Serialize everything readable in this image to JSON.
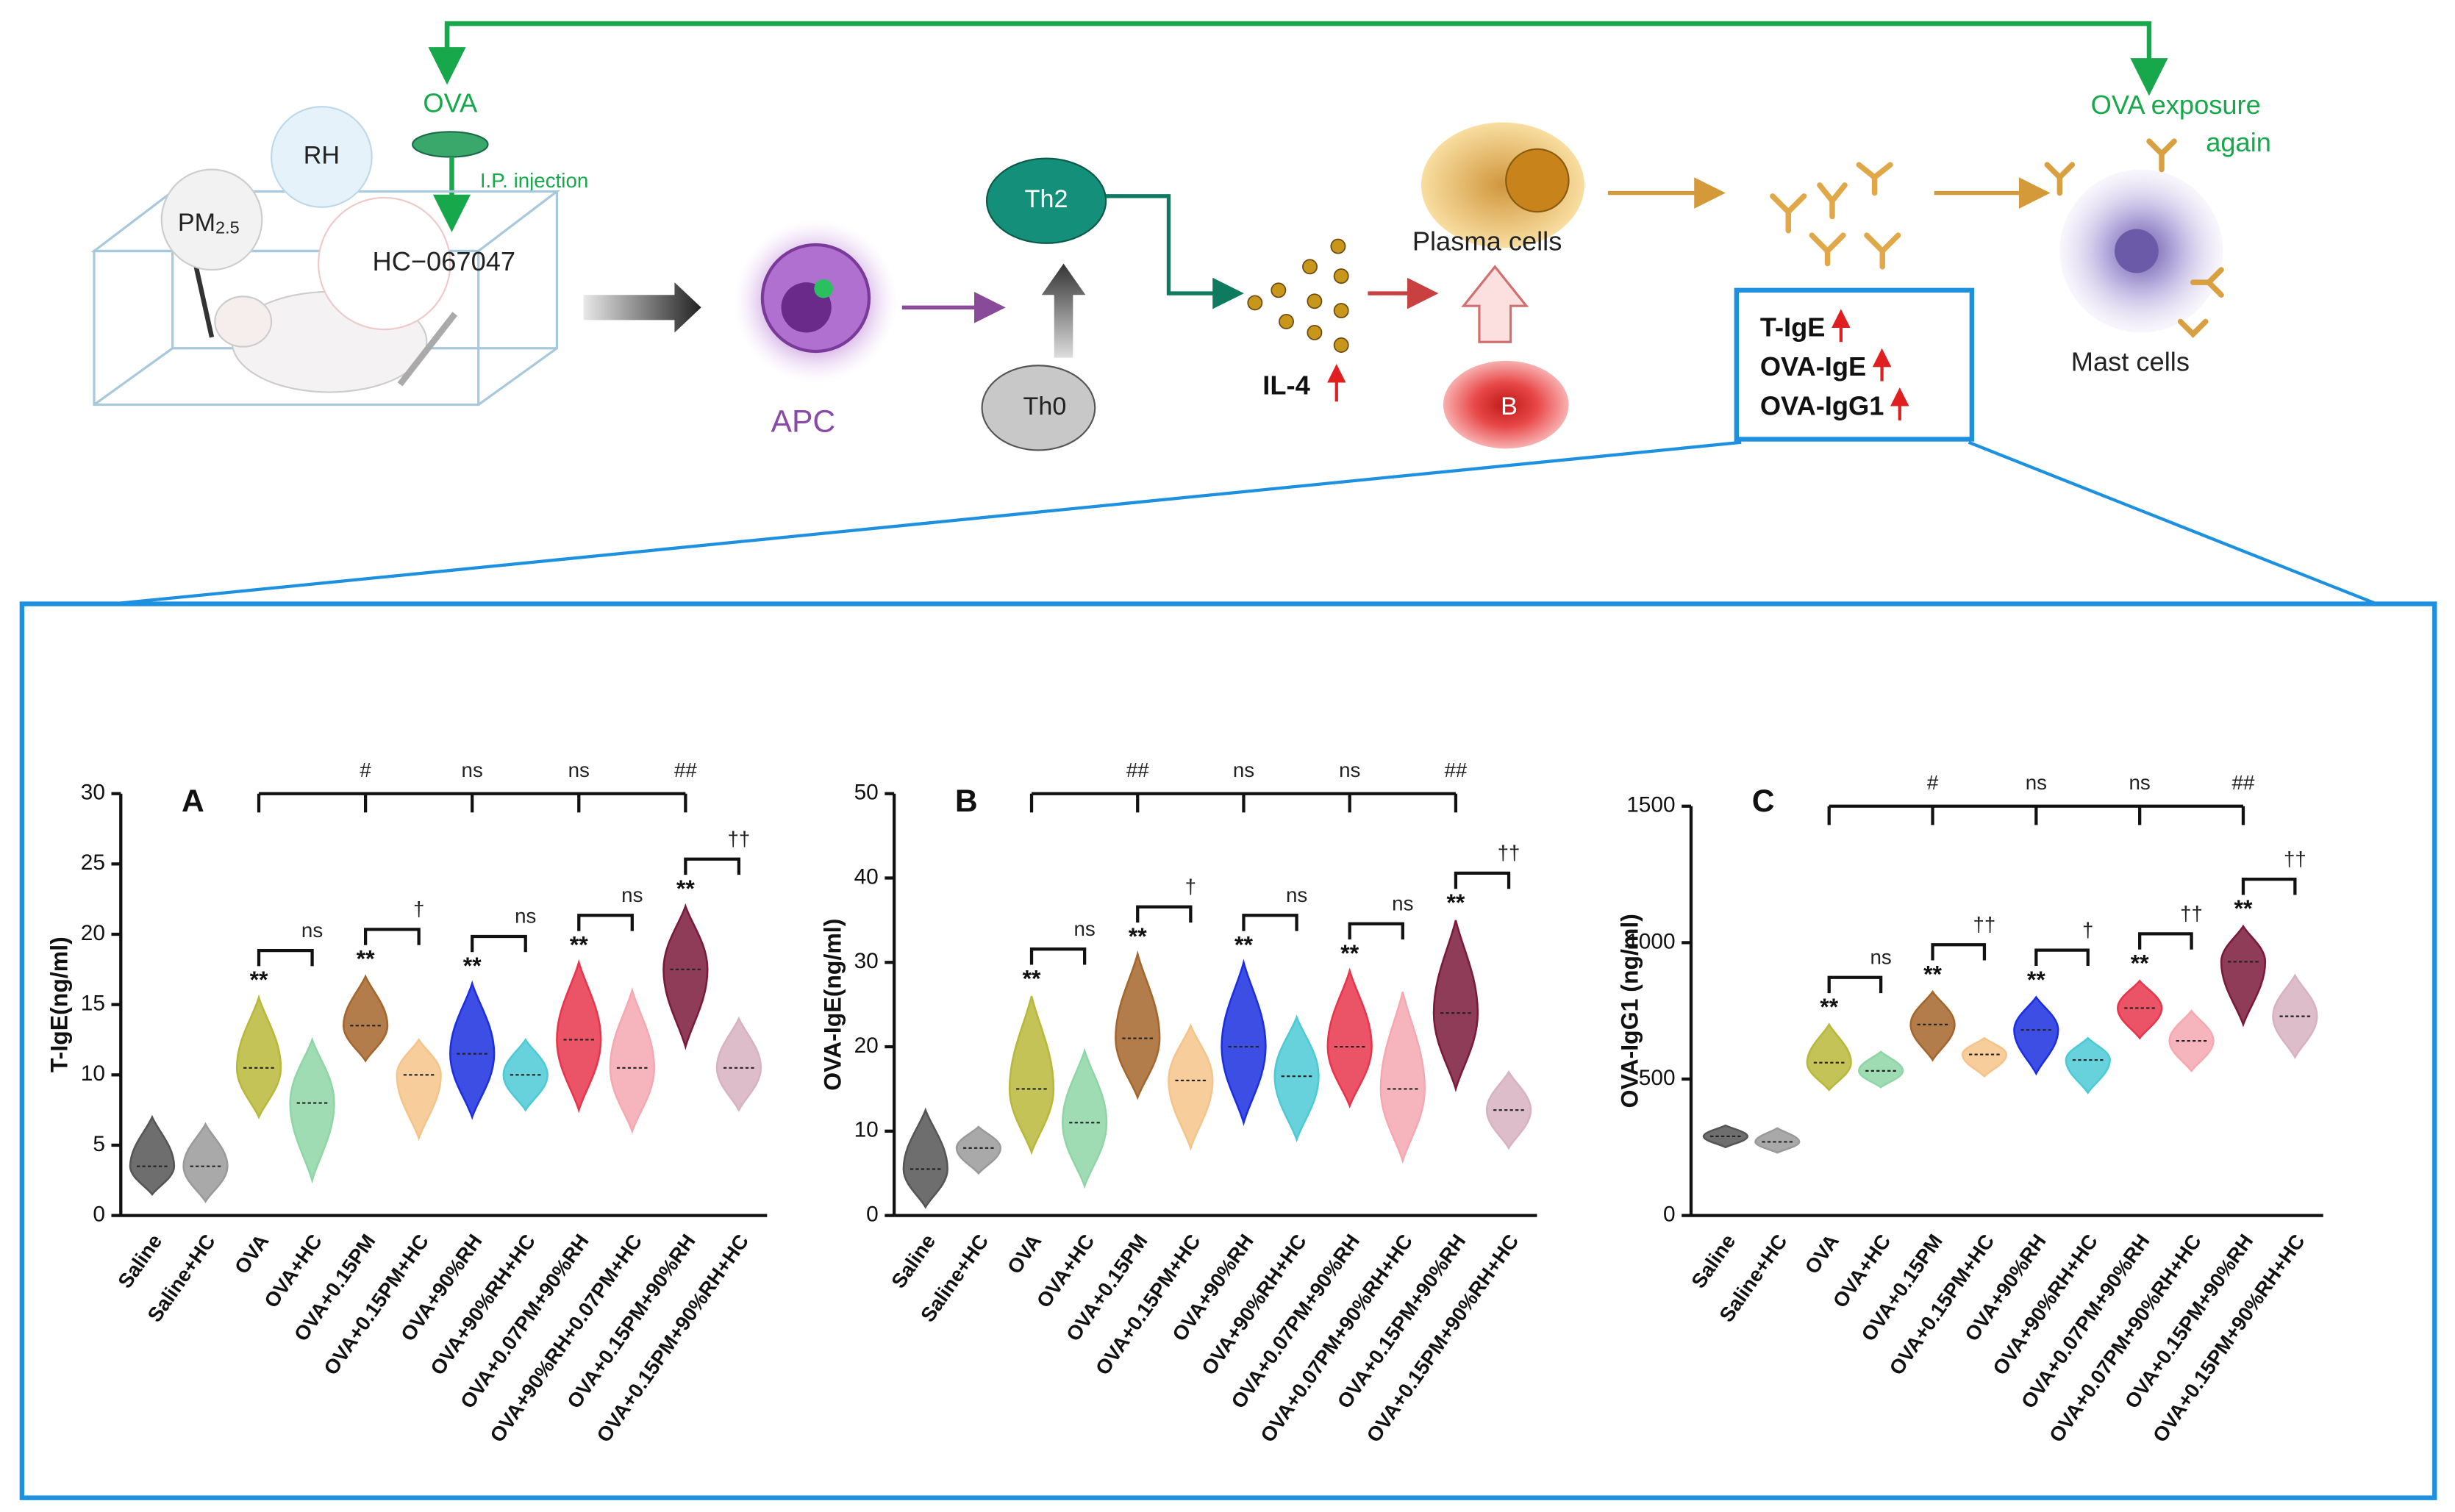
{
  "diagram": {
    "ova": "OVA",
    "ip_injection": "I.P. injection",
    "rh": "RH",
    "pm25": [
      "PM",
      "2.5"
    ],
    "hc": "HC−067047",
    "apc": "APC",
    "th2": "Th2",
    "th0": "Th0",
    "il4": "IL-4",
    "plasma": "Plasma cells",
    "b": "B",
    "antibodies": [
      "T-IgE",
      "OVA-IgE",
      "OVA-IgG1"
    ],
    "exposure": [
      "OVA exposure",
      "again"
    ],
    "mast": "Mast cells"
  },
  "chart_data": [
    {
      "type": "violin",
      "letter": "A",
      "ylabel": "T-IgE(ng/ml)",
      "ylim": [
        0,
        30
      ],
      "yticks": [
        0,
        5,
        10,
        15,
        20,
        25,
        30
      ],
      "categories": [
        "Saline",
        "Saline+HC",
        "OVA",
        "OVA+HC",
        "OVA+0.15PM",
        "OVA+0.15PM+HC",
        "OVA+90%RH",
        "OVA+90%RH+HC",
        "OVA+0.07PM+90%RH",
        "OVA+90%RH+0.07PM+HC",
        "OVA+0.15PM+90%RH",
        "OVA+0.15PM+90%RH+HC"
      ],
      "values": [
        3.5,
        3.5,
        10.5,
        8,
        13.5,
        10,
        11.5,
        10,
        12.5,
        10.5,
        17.5,
        10.5
      ],
      "mins": [
        1.5,
        1,
        7,
        2.5,
        11,
        5.5,
        7,
        7.5,
        7.5,
        6,
        12,
        7.5
      ],
      "maxs": [
        7,
        6.5,
        15.5,
        12.5,
        17,
        12.5,
        16.5,
        12.5,
        18,
        16,
        22,
        14
      ],
      "colors": [
        "#555555",
        "#9a9a9a",
        "#b8b83a",
        "#8ed6a6",
        "#a4662c",
        "#f5c48a",
        "#1b2fe0",
        "#4ccad6",
        "#e8354b",
        "#f5a8b0",
        "#7a1a3a",
        "#d8b2c2"
      ],
      "star_label": "**",
      "top_bracket_labels": [
        "#",
        "ns",
        "ns",
        "##"
      ],
      "pair_bracket_labels": [
        "ns",
        "†",
        "ns",
        "ns",
        "††"
      ]
    },
    {
      "type": "violin",
      "letter": "B",
      "ylabel": "OVA-IgE(ng/ml)",
      "ylim": [
        0,
        50
      ],
      "yticks": [
        0,
        10,
        20,
        30,
        40,
        50
      ],
      "categories": [
        "Saline",
        "Saline+HC",
        "OVA",
        "OVA+HC",
        "OVA+0.15PM",
        "OVA+0.15PM+HC",
        "OVA+90%RH",
        "OVA+90%RH+HC",
        "OVA+0.07PM+90%RH",
        "OVA+0.07PM+90%RH+HC",
        "OVA+0.15PM+90%RH",
        "OVA+0.15PM+90%RH+HC"
      ],
      "values": [
        5.5,
        8,
        15,
        11,
        21,
        16,
        20,
        16.5,
        20,
        15,
        24,
        12.5
      ],
      "mins": [
        1,
        5,
        7.5,
        3.5,
        14,
        8,
        11,
        9,
        13,
        6.5,
        15,
        8
      ],
      "maxs": [
        12.5,
        10.5,
        26,
        19.5,
        31,
        22.5,
        30,
        23.5,
        29,
        26.5,
        35,
        17
      ],
      "colors": [
        "#555555",
        "#9a9a9a",
        "#b8b83a",
        "#8ed6a6",
        "#a4662c",
        "#f5c48a",
        "#1b2fe0",
        "#4ccad6",
        "#e8354b",
        "#f5a8b0",
        "#7a1a3a",
        "#d8b2c2"
      ],
      "star_label": "**",
      "top_bracket_labels": [
        "##",
        "ns",
        "ns",
        "##"
      ],
      "pair_bracket_labels": [
        "ns",
        "†",
        "ns",
        "ns",
        "††"
      ]
    },
    {
      "type": "violin",
      "letter": "C",
      "ylabel": "OVA-IgG1 (ng/ml)",
      "ylim": [
        0,
        1500
      ],
      "yticks": [
        0,
        500,
        1000,
        1500
      ],
      "categories": [
        "Saline",
        "Saline+HC",
        "OVA",
        "OVA+HC",
        "OVA+0.15PM",
        "OVA+0.15PM+HC",
        "OVA+90%RH",
        "OVA+90%RH+HC",
        "OVA+0.07PM+90%RH",
        "OVA+0.07PM+90%RH+HC",
        "OVA+0.15PM+90%RH",
        "OVA+0.15PM+90%RH+HC"
      ],
      "values": [
        290,
        270,
        560,
        530,
        700,
        590,
        680,
        570,
        760,
        640,
        930,
        730
      ],
      "mins": [
        250,
        230,
        460,
        470,
        570,
        510,
        520,
        450,
        650,
        530,
        700,
        580
      ],
      "maxs": [
        330,
        320,
        700,
        600,
        820,
        650,
        800,
        650,
        860,
        750,
        1060,
        880
      ],
      "colors": [
        "#555555",
        "#9a9a9a",
        "#b8b83a",
        "#8ed6a6",
        "#a4662c",
        "#f5c48a",
        "#1b2fe0",
        "#4ccad6",
        "#e8354b",
        "#f5a8b0",
        "#7a1a3a",
        "#d8b2c2"
      ],
      "star_label": "**",
      "top_bracket_labels": [
        "#",
        "ns",
        "ns",
        "##"
      ],
      "pair_bracket_labels": [
        "ns",
        "††",
        "†",
        "††",
        "††"
      ]
    }
  ]
}
